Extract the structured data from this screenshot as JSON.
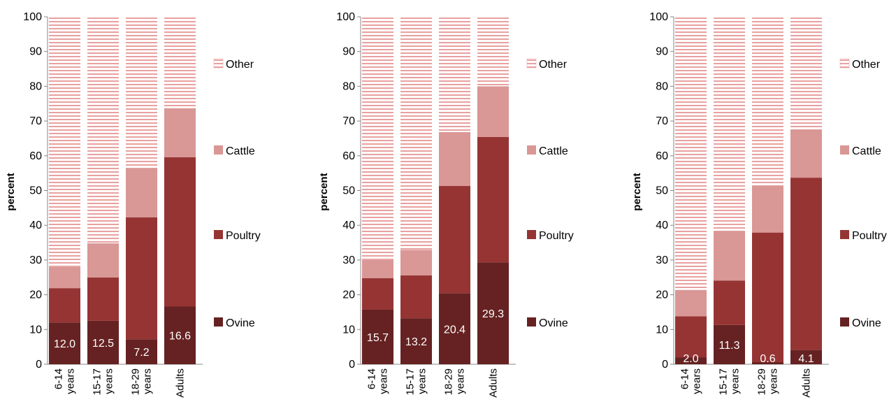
{
  "colors": {
    "Ovine": "#662222",
    "Poultry": "#963434",
    "Cattle": "#d99795",
    "Other_stripe": "#e9a0a0",
    "Other_bg": "#ffffff"
  },
  "chart_data": [
    {
      "type": "bar",
      "stacked": true,
      "ylabel": "percent",
      "ylim": [
        0,
        100
      ],
      "yticks": [
        0,
        10,
        20,
        30,
        40,
        50,
        60,
        70,
        80,
        90,
        100
      ],
      "categories": [
        "6-14 years",
        "15-17 years",
        "18-29 years",
        "Adults"
      ],
      "series": [
        {
          "name": "Ovine",
          "values": [
            12.0,
            12.5,
            7.2,
            16.6
          ]
        },
        {
          "name": "Poultry",
          "values": [
            9.9,
            12.5,
            35.1,
            43.0
          ]
        },
        {
          "name": "Cattle",
          "values": [
            6.1,
            9.8,
            14.2,
            14.1
          ]
        },
        {
          "name": "Other",
          "values": [
            72.0,
            65.2,
            43.5,
            26.3
          ]
        }
      ],
      "data_labels": [
        "12.0",
        "12.5",
        "7.2",
        "16.6"
      ],
      "legend": [
        "Other",
        "Cattle",
        "Poultry",
        "Ovine"
      ],
      "legend_position": "right",
      "grid": false
    },
    {
      "type": "bar",
      "stacked": true,
      "ylabel": "percent",
      "ylim": [
        0,
        100
      ],
      "yticks": [
        0,
        10,
        20,
        30,
        40,
        50,
        60,
        70,
        80,
        90,
        100
      ],
      "categories": [
        "6-14 years",
        "15-17 years",
        "18-29 years",
        "Adults"
      ],
      "series": [
        {
          "name": "Ovine",
          "values": [
            15.7,
            13.2,
            20.4,
            29.3
          ]
        },
        {
          "name": "Poultry",
          "values": [
            9.1,
            12.4,
            30.9,
            36.1
          ]
        },
        {
          "name": "Cattle",
          "values": [
            5.2,
            7.3,
            15.5,
            14.6
          ]
        },
        {
          "name": "Other",
          "values": [
            70.0,
            67.1,
            33.2,
            20.0
          ]
        }
      ],
      "data_labels": [
        "15.7",
        "13.2",
        "20.4",
        "29.3"
      ],
      "legend": [
        "Other",
        "Cattle",
        "Poultry",
        "Ovine"
      ],
      "legend_position": "right",
      "grid": false
    },
    {
      "type": "bar",
      "stacked": true,
      "ylabel": "percent",
      "ylim": [
        0,
        100
      ],
      "yticks": [
        0,
        10,
        20,
        30,
        40,
        50,
        60,
        70,
        80,
        90,
        100
      ],
      "categories": [
        "6-14 years",
        "15-17 years",
        "18-29 years",
        "Adults"
      ],
      "series": [
        {
          "name": "Ovine",
          "values": [
            2.0,
            11.3,
            0.6,
            4.1
          ]
        },
        {
          "name": "Poultry",
          "values": [
            11.8,
            12.8,
            37.3,
            49.6
          ]
        },
        {
          "name": "Cattle",
          "values": [
            7.6,
            14.3,
            13.4,
            13.8
          ]
        },
        {
          "name": "Other",
          "values": [
            78.6,
            61.6,
            48.7,
            32.5
          ]
        }
      ],
      "data_labels": [
        "2.0",
        "11.3",
        "0.6",
        "4.1"
      ],
      "legend": [
        "Other",
        "Cattle",
        "Poultry",
        "Ovine"
      ],
      "legend_position": "right",
      "grid": false
    }
  ]
}
